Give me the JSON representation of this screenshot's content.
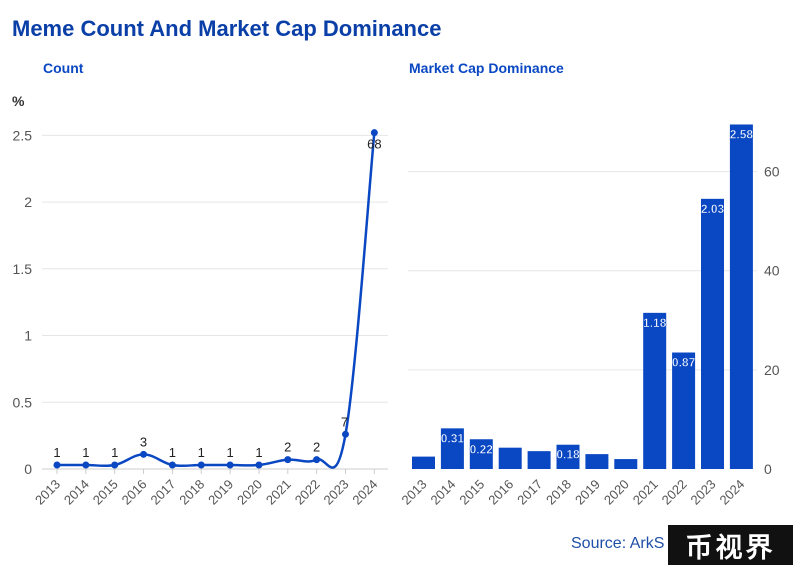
{
  "title": "Meme Count And Market Cap Dominance",
  "source": "Source: ArkS",
  "watermark": "币视界",
  "colors": {
    "accent": "#0a47c2",
    "title": "#0a3fa8",
    "grid": "#e6e6e6",
    "axis_text": "#555555"
  },
  "chart_data": [
    {
      "type": "line",
      "subtitle": "Count",
      "unit_label": "%",
      "x": [
        "2013",
        "2014",
        "2015",
        "2016",
        "2017",
        "2018",
        "2019",
        "2020",
        "2021",
        "2022",
        "2023",
        "2024"
      ],
      "y": [
        0.03,
        0.03,
        0.03,
        0.11,
        0.03,
        0.03,
        0.03,
        0.03,
        0.07,
        0.07,
        0.26,
        2.52
      ],
      "data_labels": [
        "1",
        "1",
        "1",
        "3",
        "1",
        "1",
        "1",
        "1",
        "2",
        "2",
        "7",
        "68"
      ],
      "yticks": [
        "0",
        "0.5",
        "1",
        "1.5",
        "2",
        "2.5"
      ],
      "ylim": [
        0,
        2.6
      ],
      "grid": true
    },
    {
      "type": "bar",
      "subtitle": "Market Cap Dominance",
      "categories": [
        "2013",
        "2014",
        "2015",
        "2016",
        "2017",
        "2018",
        "2019",
        "2020",
        "2021",
        "2022",
        "2023",
        "2024"
      ],
      "values": [
        2.5,
        8.2,
        6.0,
        4.3,
        3.6,
        4.9,
        3.0,
        2.0,
        31.5,
        23.5,
        54.5,
        69.5
      ],
      "data_labels": [
        "",
        "0.31",
        "0.22",
        "",
        "",
        "0.18",
        "",
        "",
        "1.18",
        "0.87",
        "2.03",
        "2.58"
      ],
      "yticks": [
        "0",
        "20",
        "40",
        "60"
      ],
      "ylim": [
        0,
        70
      ],
      "grid": true
    }
  ]
}
